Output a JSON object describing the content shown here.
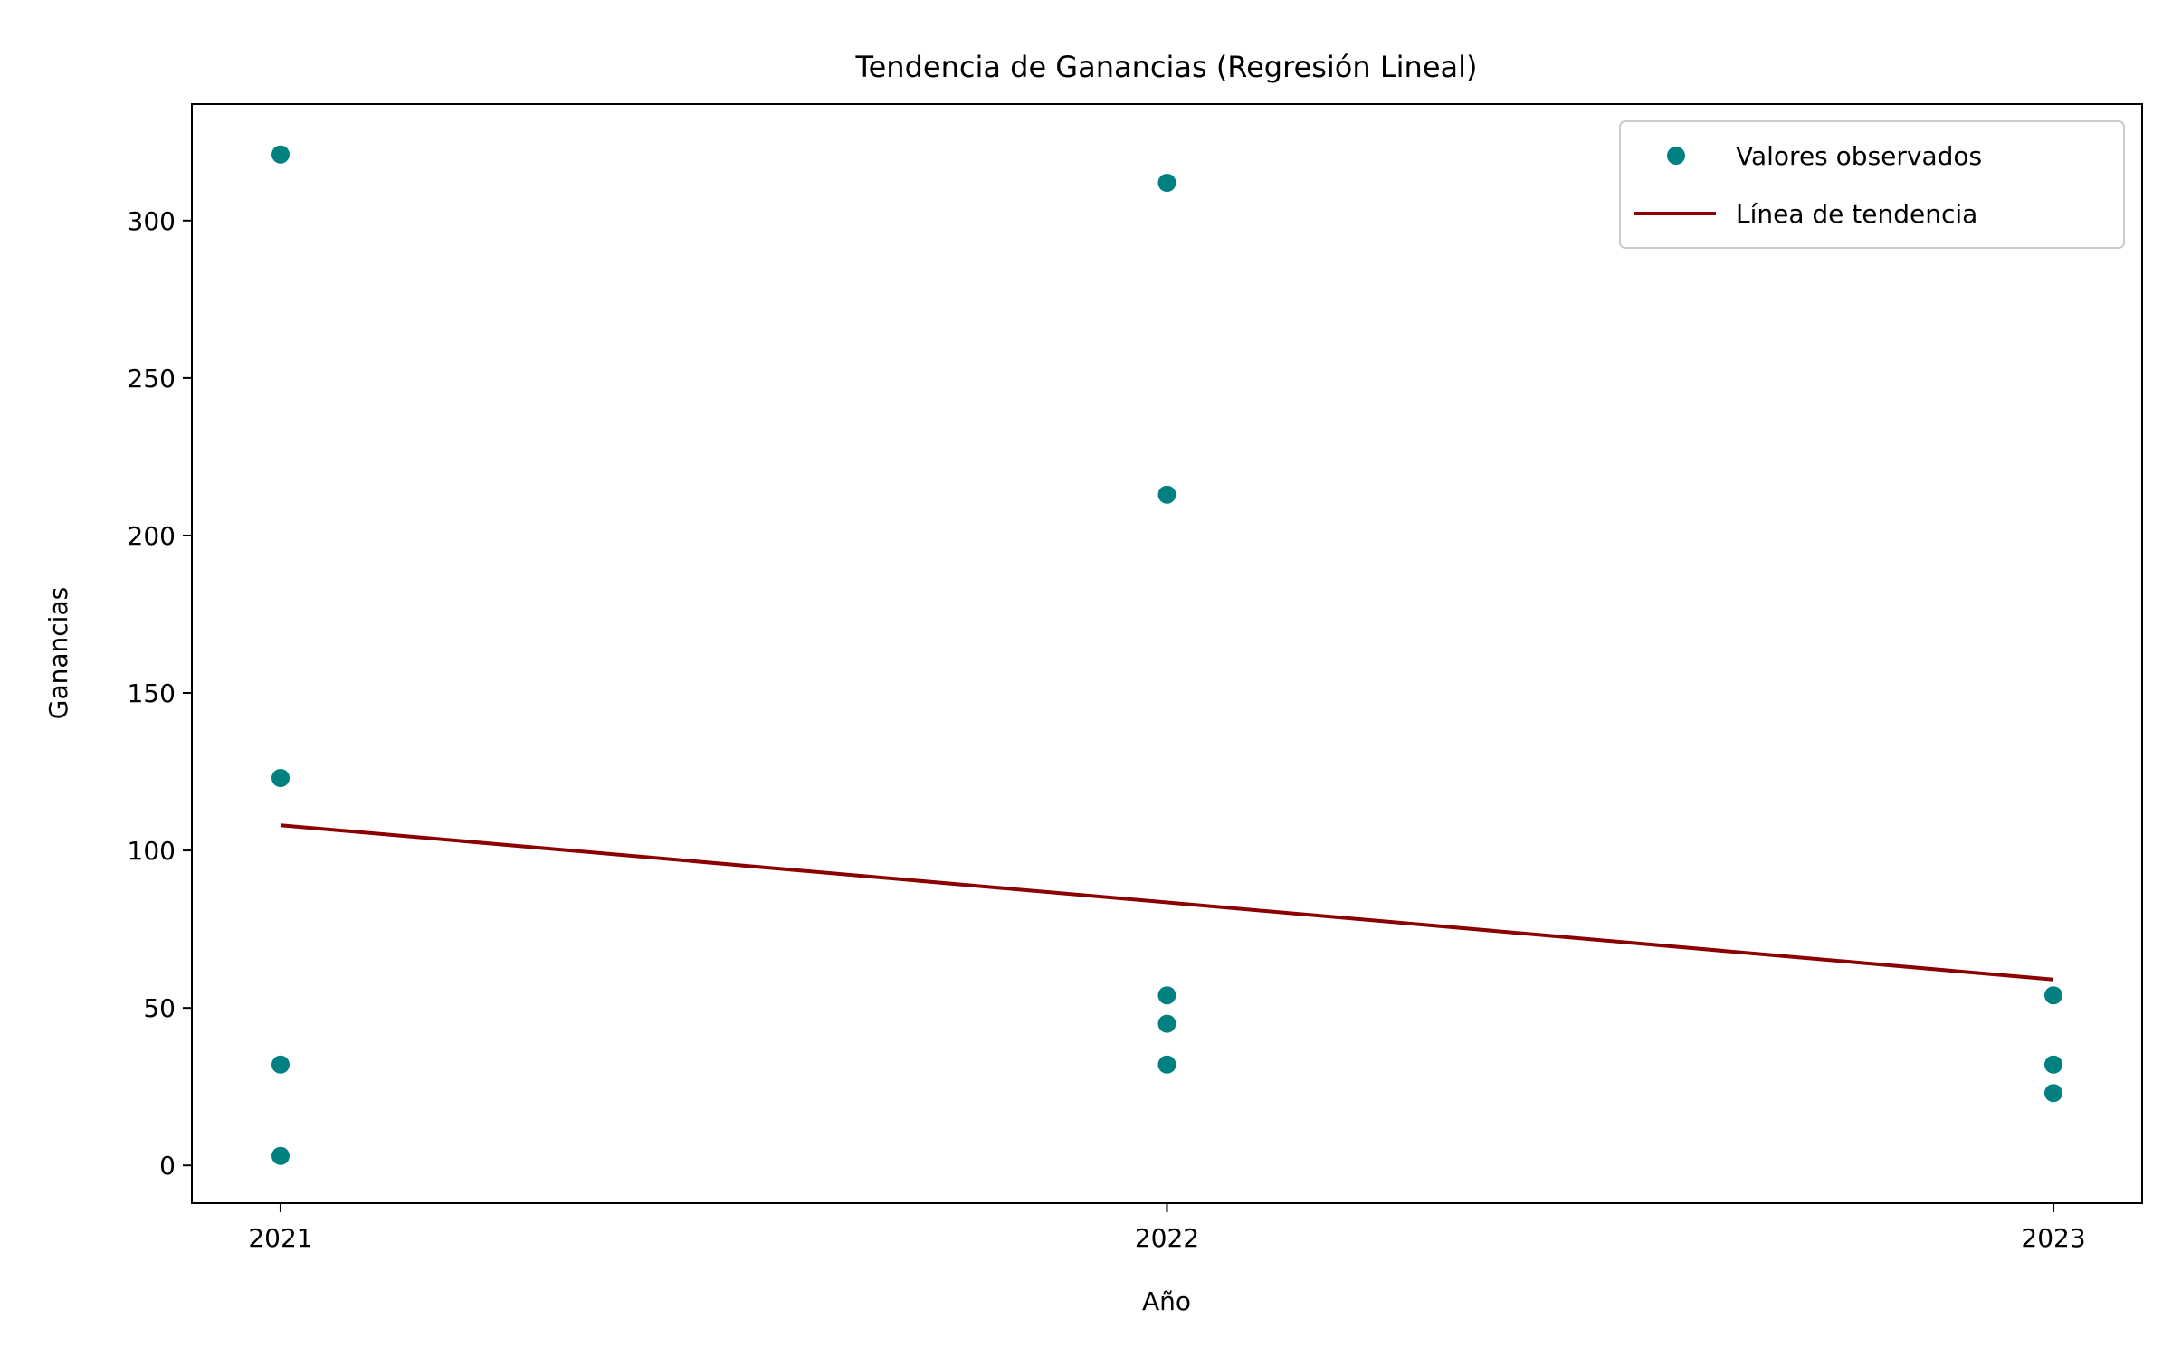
{
  "chart_data": {
    "type": "scatter",
    "title": "Tendencia de Ganancias (Regresión Lineal)",
    "xlabel": "Año",
    "ylabel": "Ganancias",
    "x_ticks": [
      2021,
      2022,
      2023
    ],
    "y_ticks": [
      0,
      50,
      100,
      150,
      200,
      250,
      300
    ],
    "xlim": [
      2020.9,
      2023.1
    ],
    "ylim": [
      -12,
      337
    ],
    "grid": false,
    "legend_position": "top-right",
    "series": [
      {
        "name": "Valores observados",
        "kind": "scatter",
        "color": "#008080",
        "points": [
          {
            "x": 2021,
            "y": 321
          },
          {
            "x": 2021,
            "y": 123
          },
          {
            "x": 2021,
            "y": 32
          },
          {
            "x": 2021,
            "y": 3
          },
          {
            "x": 2022,
            "y": 312
          },
          {
            "x": 2022,
            "y": 213
          },
          {
            "x": 2022,
            "y": 54
          },
          {
            "x": 2022,
            "y": 45
          },
          {
            "x": 2022,
            "y": 32
          },
          {
            "x": 2023,
            "y": 54
          },
          {
            "x": 2023,
            "y": 32
          },
          {
            "x": 2023,
            "y": 23
          }
        ]
      },
      {
        "name": "Línea de tendencia",
        "kind": "line",
        "color": "#8b0000",
        "points": [
          {
            "x": 2021,
            "y": 108
          },
          {
            "x": 2023,
            "y": 59
          }
        ]
      }
    ]
  }
}
